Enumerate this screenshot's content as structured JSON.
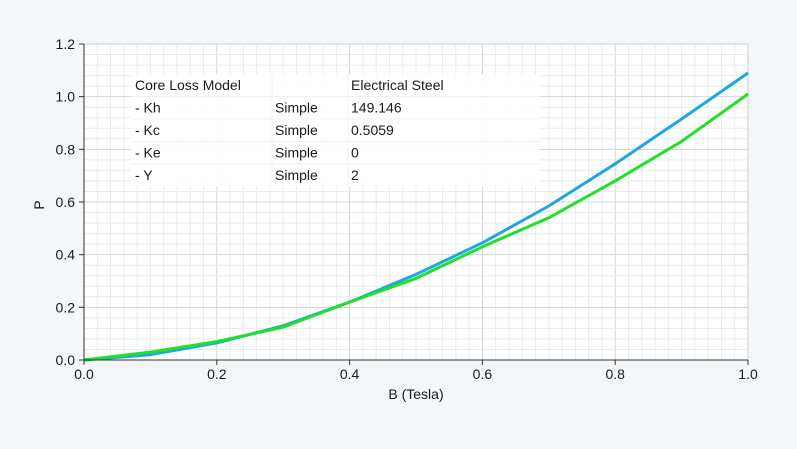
{
  "chart_data": {
    "type": "line",
    "title": "",
    "xlabel": "B (Tesla)",
    "ylabel": "P",
    "xlim": [
      0,
      1
    ],
    "ylim": [
      0,
      1.2
    ],
    "grid": true,
    "x_ticks": [
      "0.0",
      "0.2",
      "0.4",
      "0.6",
      "0.8",
      "1.0"
    ],
    "y_ticks": [
      "0.0",
      "0.2",
      "0.4",
      "0.6",
      "0.8",
      "1.0",
      "1.2"
    ],
    "series": [
      {
        "color": "#1ea7e1",
        "points": [
          [
            0,
            0
          ],
          [
            0.1,
            0.02
          ],
          [
            0.2,
            0.065
          ],
          [
            0.3,
            0.13
          ],
          [
            0.4,
            0.22
          ],
          [
            0.5,
            0.325
          ],
          [
            0.6,
            0.445
          ],
          [
            0.7,
            0.585
          ],
          [
            0.8,
            0.745
          ],
          [
            0.9,
            0.915
          ],
          [
            1.0,
            1.09
          ]
        ]
      },
      {
        "color": "#22e02a",
        "points": [
          [
            0,
            0
          ],
          [
            0.1,
            0.03
          ],
          [
            0.2,
            0.07
          ],
          [
            0.3,
            0.125
          ],
          [
            0.4,
            0.22
          ],
          [
            0.5,
            0.31
          ],
          [
            0.6,
            0.43
          ],
          [
            0.7,
            0.54
          ],
          [
            0.8,
            0.68
          ],
          [
            0.9,
            0.83
          ],
          [
            1.0,
            1.01
          ]
        ]
      }
    ],
    "table": {
      "header": [
        "Core Loss Model",
        "",
        "Electrical Steel"
      ],
      "rows": [
        [
          "- Kh",
          "Simple",
          "149.146"
        ],
        [
          "- Kc",
          "Simple",
          "0.5059"
        ],
        [
          "- Ke",
          "Simple",
          "0"
        ],
        [
          "- Y",
          "Simple",
          "2"
        ]
      ]
    }
  }
}
